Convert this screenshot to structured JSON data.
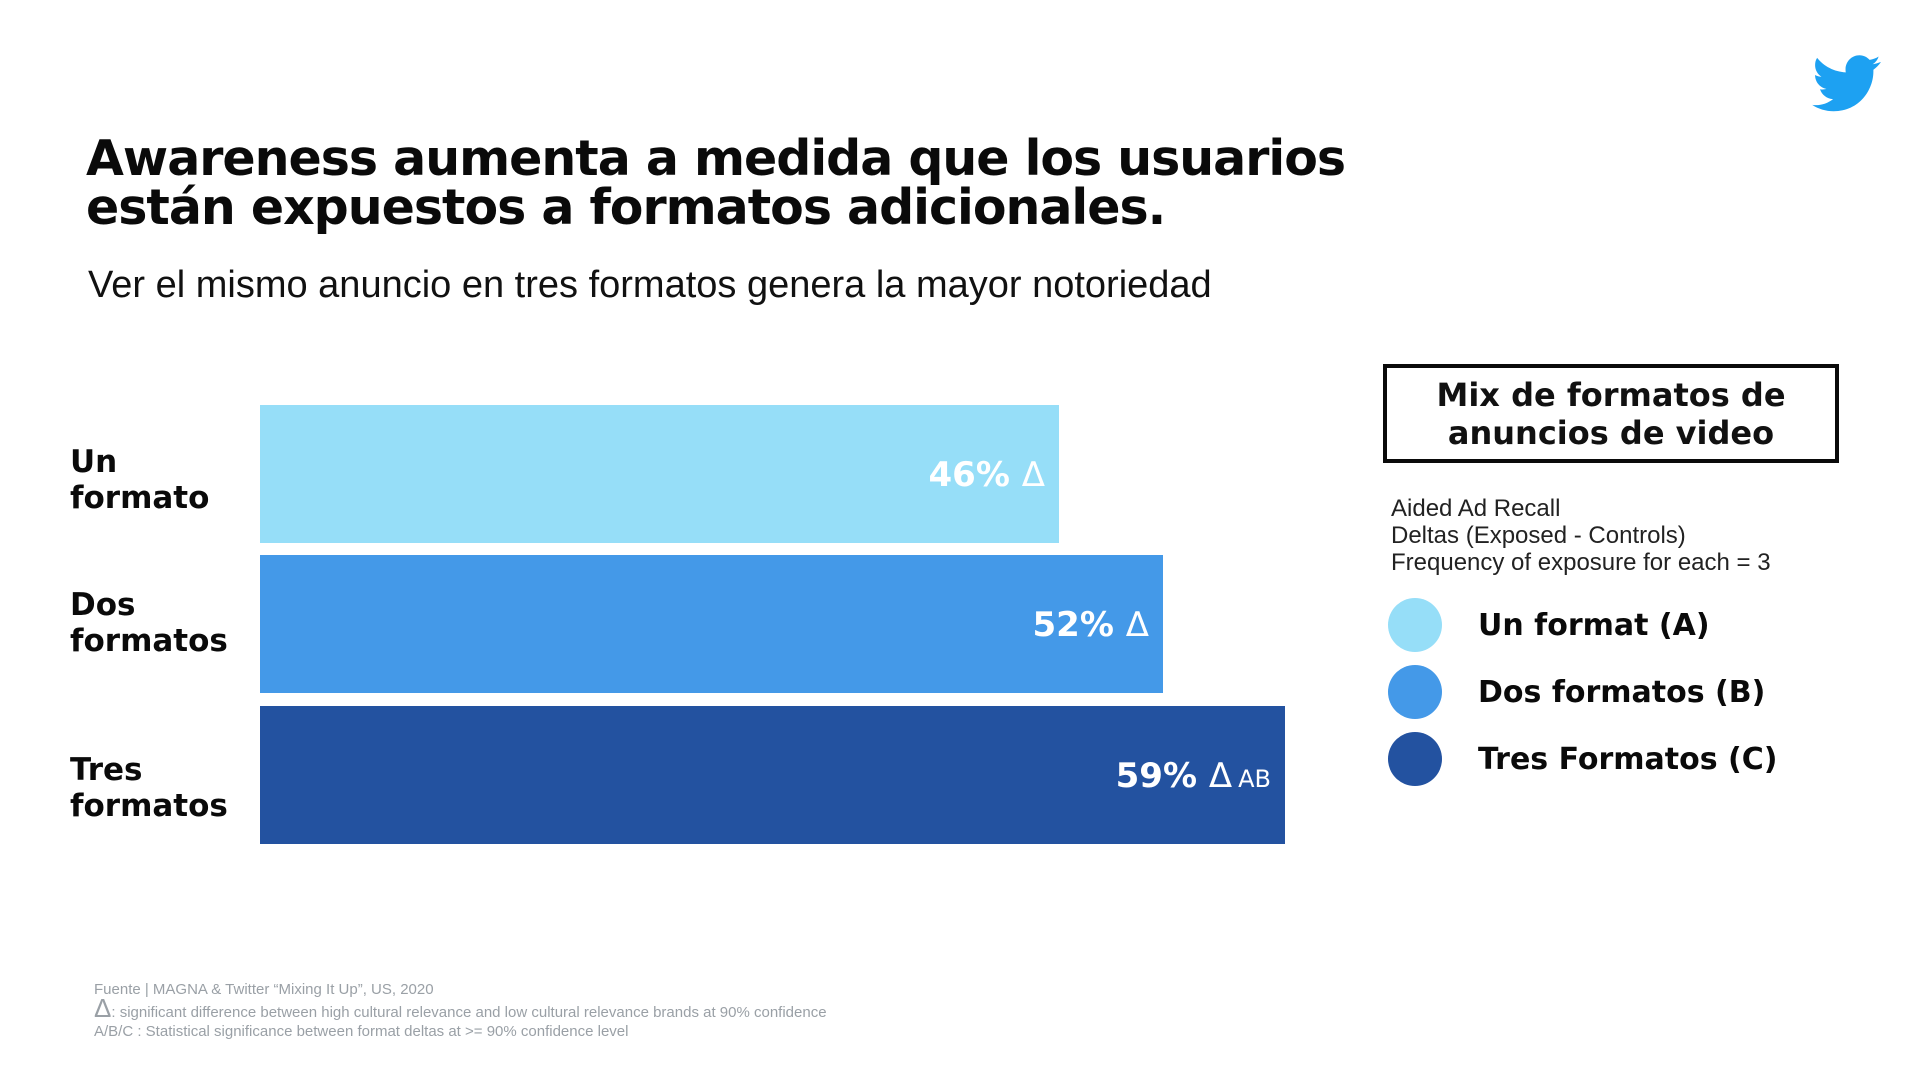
{
  "title_line1": "Awareness aumenta a medida que los usuarios",
  "title_line2": "están expuestos a formatos adicionales.",
  "subtitle": "Ver el mismo anuncio en tres formatos genera la mayor notoriedad",
  "chart_data": {
    "type": "bar",
    "orientation": "horizontal",
    "categories": [
      [
        "Un",
        "formato"
      ],
      [
        "Dos",
        "formatos"
      ],
      [
        "Tres",
        "formatos"
      ]
    ],
    "values": [
      46,
      52,
      59
    ],
    "value_labels": [
      "46%",
      "52%",
      "59%"
    ],
    "significance": [
      "Δ",
      "Δ",
      "Δ AB"
    ],
    "colors": [
      "#96DEF8",
      "#4499E8",
      "#2352A0"
    ],
    "xlim": [
      0,
      59
    ]
  },
  "legend": {
    "box_title_line1": "Mix de formatos de",
    "box_title_line2": "anuncios de video",
    "notes": [
      "Aided Ad Recall",
      "Deltas (Exposed - Controls)",
      "Frequency of exposure for each = 3"
    ],
    "items": [
      {
        "label": "Un format (A)",
        "color": "#96DEF8"
      },
      {
        "label": "Dos formatos (B)",
        "color": "#4499E8"
      },
      {
        "label": "Tres Formatos (C)",
        "color": "#2352A0"
      }
    ]
  },
  "footer": {
    "source": "Fuente | MAGNA & Twitter “Mixing It Up”, US, 2020",
    "delta_symbol": "Δ",
    "delta_note": ": significant difference between high cultural relevance and low cultural relevance brands at 90% confidence",
    "abc_note": "A/B/C : Statistical significance between format deltas at >= 90% confidence level"
  },
  "icons": {
    "brand": "twitter-bird-icon",
    "brand_color": "#1DA1F2"
  }
}
